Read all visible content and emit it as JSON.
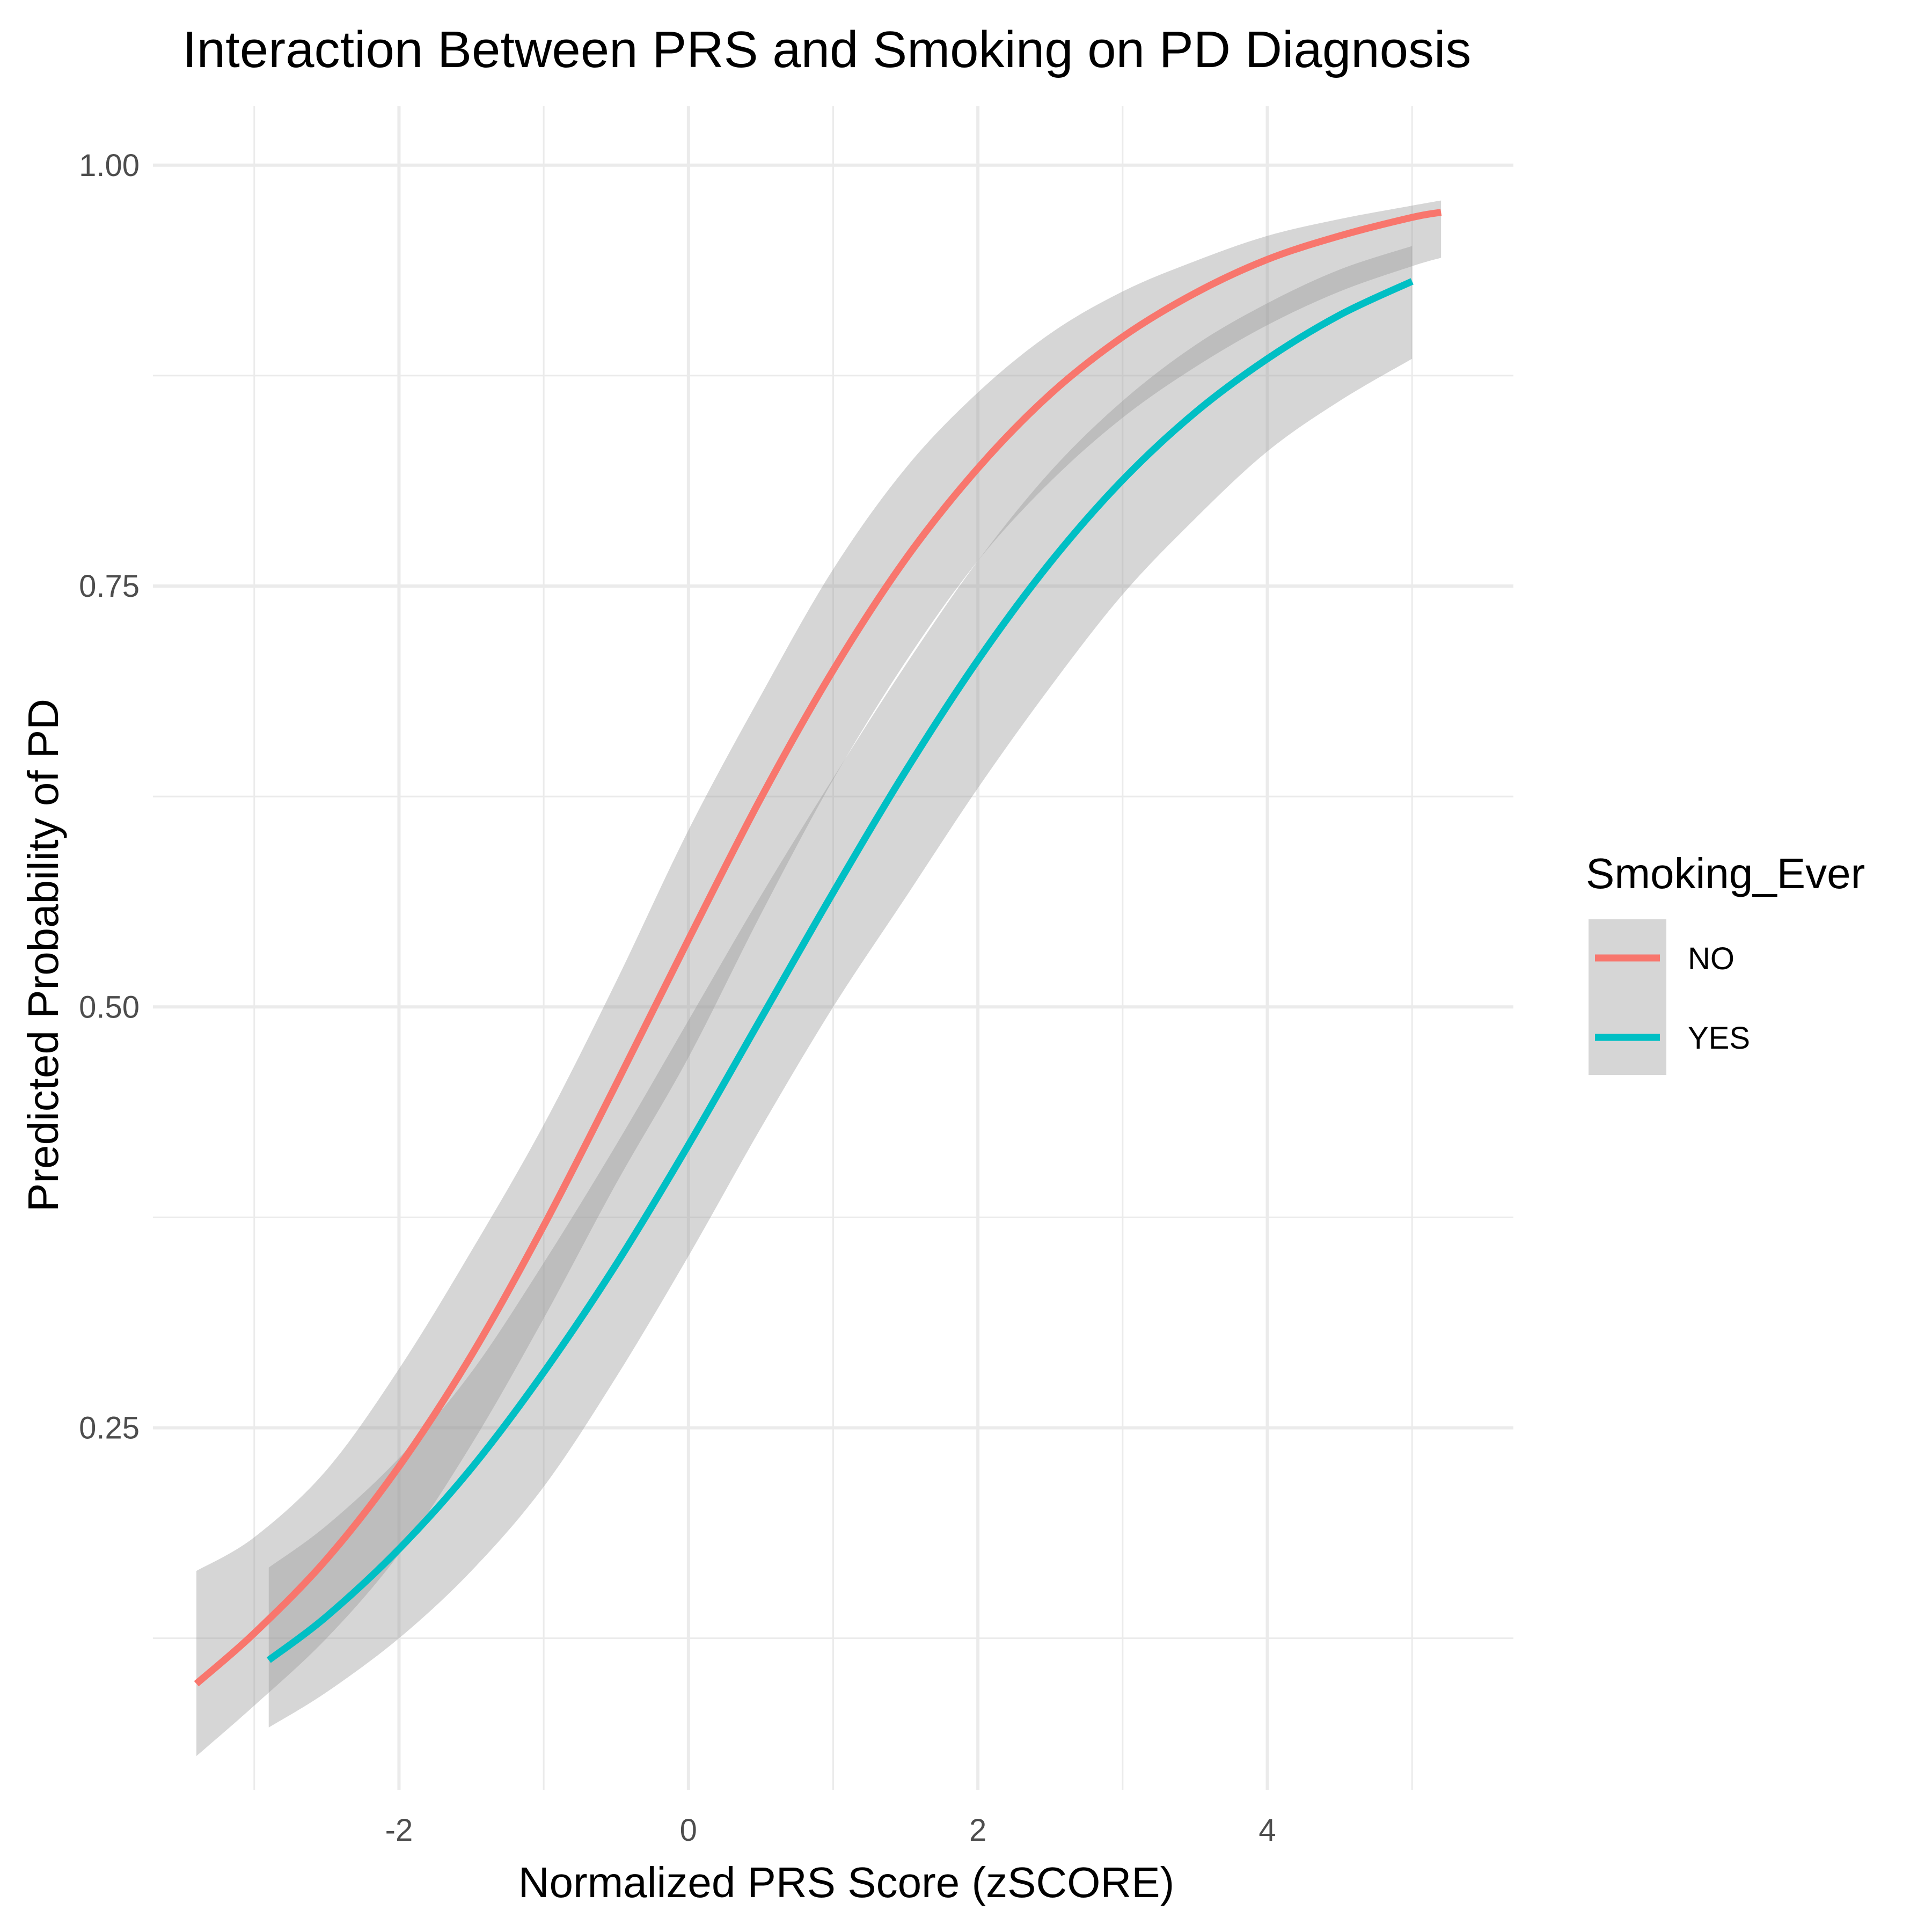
{
  "chart_data": {
    "type": "line",
    "title": "Interaction Between PRS and Smoking on PD Diagnosis",
    "xlabel": "Normalized PRS Score (zSCORE)",
    "ylabel": "Predicted Probability of PD",
    "xlim": [
      -3.7,
      5.7
    ],
    "ylim": [
      0.035,
      1.035
    ],
    "x_ticks": [
      -2,
      0,
      2,
      4
    ],
    "x_tick_labels": [
      "-2",
      "0",
      "2",
      "4"
    ],
    "x_minor_ticks": [
      -3,
      -1,
      1,
      3,
      5
    ],
    "y_ticks": [
      0.25,
      0.5,
      0.75,
      1.0
    ],
    "y_tick_labels": [
      "0.25",
      "0.50",
      "0.75",
      "1.00"
    ],
    "y_minor_ticks": [
      0.125,
      0.375,
      0.625,
      0.875
    ],
    "grid": true,
    "legend": {
      "title": "Smoking_Ever",
      "position": "right"
    },
    "series": [
      {
        "name": "NO",
        "color": "#F8766D",
        "x": [
          -3.4,
          -3.0,
          -2.5,
          -2.0,
          -1.5,
          -1.0,
          -0.5,
          0.0,
          0.5,
          1.0,
          1.5,
          2.0,
          2.5,
          3.0,
          3.5,
          4.0,
          4.5,
          5.0,
          5.2
        ],
        "y": [
          0.098,
          0.128,
          0.172,
          0.227,
          0.293,
          0.37,
          0.454,
          0.54,
          0.624,
          0.7,
          0.766,
          0.82,
          0.864,
          0.898,
          0.924,
          0.944,
          0.958,
          0.969,
          0.972
        ],
        "ci_lower": [
          0.055,
          0.085,
          0.125,
          0.175,
          0.24,
          0.315,
          0.395,
          0.47,
          0.555,
          0.635,
          0.705,
          0.765,
          0.812,
          0.85,
          0.88,
          0.905,
          0.925,
          0.94,
          0.945
        ],
        "ci_upper": [
          0.165,
          0.185,
          0.225,
          0.285,
          0.355,
          0.43,
          0.515,
          0.605,
          0.685,
          0.76,
          0.82,
          0.865,
          0.9,
          0.925,
          0.943,
          0.958,
          0.968,
          0.976,
          0.979
        ]
      },
      {
        "name": "YES",
        "color": "#00BFC4",
        "x": [
          -2.9,
          -2.5,
          -2.0,
          -1.5,
          -1.0,
          -0.5,
          0.0,
          0.5,
          1.0,
          1.5,
          2.0,
          2.5,
          3.0,
          3.5,
          4.0,
          4.5,
          5.0
        ],
        "y": [
          0.112,
          0.138,
          0.178,
          0.226,
          0.283,
          0.347,
          0.418,
          0.493,
          0.568,
          0.64,
          0.706,
          0.764,
          0.813,
          0.853,
          0.885,
          0.911,
          0.931
        ],
        "ci_lower": [
          0.072,
          0.093,
          0.125,
          0.165,
          0.215,
          0.28,
          0.352,
          0.428,
          0.5,
          0.565,
          0.63,
          0.69,
          0.745,
          0.79,
          0.83,
          0.86,
          0.885
        ],
        "ci_upper": [
          0.167,
          0.192,
          0.232,
          0.283,
          0.348,
          0.418,
          0.492,
          0.566,
          0.636,
          0.703,
          0.765,
          0.818,
          0.86,
          0.893,
          0.918,
          0.938,
          0.952
        ]
      }
    ]
  }
}
